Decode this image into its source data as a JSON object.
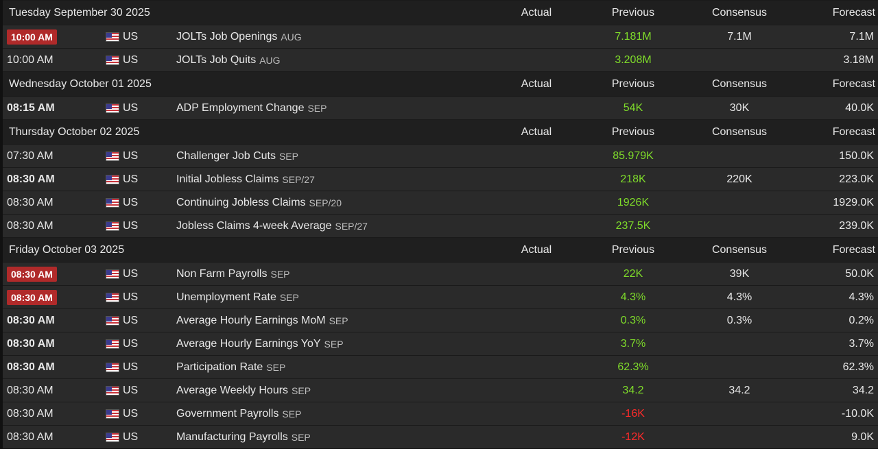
{
  "columns": {
    "actual": "Actual",
    "previous": "Previous",
    "consensus": "Consensus",
    "forecast": "Forecast"
  },
  "days": [
    {
      "date": "Tuesday September 30 2025",
      "events": [
        {
          "time": "10:00 AM",
          "style": "badge",
          "country": "US",
          "name": "JOLTs Job Openings",
          "period": "AUG",
          "actual": "",
          "previous": "7.181M",
          "previous_color": "green",
          "consensus": "7.1M",
          "forecast": "7.1M"
        },
        {
          "time": "10:00 AM",
          "style": "normal",
          "country": "US",
          "name": "JOLTs Job Quits",
          "period": "AUG",
          "actual": "",
          "previous": "3.208M",
          "previous_color": "green",
          "consensus": "",
          "forecast": "3.18M"
        }
      ]
    },
    {
      "date": "Wednesday October 01 2025",
      "events": [
        {
          "time": "08:15 AM",
          "style": "bold",
          "country": "US",
          "name": "ADP Employment Change",
          "period": "SEP",
          "actual": "",
          "previous": "54K",
          "previous_color": "green",
          "consensus": "30K",
          "forecast": "40.0K"
        }
      ]
    },
    {
      "date": "Thursday October 02 2025",
      "events": [
        {
          "time": "07:30 AM",
          "style": "normal",
          "country": "US",
          "name": "Challenger Job Cuts",
          "period": "SEP",
          "actual": "",
          "previous": "85.979K",
          "previous_color": "green",
          "consensus": "",
          "forecast": "150.0K"
        },
        {
          "time": "08:30 AM",
          "style": "bold",
          "country": "US",
          "name": "Initial Jobless Claims",
          "period": "SEP/27",
          "actual": "",
          "previous": "218K",
          "previous_color": "green",
          "consensus": "220K",
          "forecast": "223.0K"
        },
        {
          "time": "08:30 AM",
          "style": "normal",
          "country": "US",
          "name": "Continuing Jobless Claims",
          "period": "SEP/20",
          "actual": "",
          "previous": "1926K",
          "previous_color": "green",
          "consensus": "",
          "forecast": "1929.0K"
        },
        {
          "time": "08:30 AM",
          "style": "normal",
          "country": "US",
          "name": "Jobless Claims 4-week Average",
          "period": "SEP/27",
          "actual": "",
          "previous": "237.5K",
          "previous_color": "green",
          "consensus": "",
          "forecast": "239.0K"
        }
      ]
    },
    {
      "date": "Friday October 03 2025",
      "events": [
        {
          "time": "08:30 AM",
          "style": "badge",
          "country": "US",
          "name": "Non Farm Payrolls",
          "period": "SEP",
          "actual": "",
          "previous": "22K",
          "previous_color": "green",
          "consensus": "39K",
          "forecast": "50.0K"
        },
        {
          "time": "08:30 AM",
          "style": "badge",
          "country": "US",
          "name": "Unemployment Rate",
          "period": "SEP",
          "actual": "",
          "previous": "4.3%",
          "previous_color": "green",
          "consensus": "4.3%",
          "forecast": "4.3%"
        },
        {
          "time": "08:30 AM",
          "style": "bold",
          "country": "US",
          "name": "Average Hourly Earnings MoM",
          "period": "SEP",
          "actual": "",
          "previous": "0.3%",
          "previous_color": "green",
          "consensus": "0.3%",
          "forecast": "0.2%"
        },
        {
          "time": "08:30 AM",
          "style": "bold",
          "country": "US",
          "name": "Average Hourly Earnings YoY",
          "period": "SEP",
          "actual": "",
          "previous": "3.7%",
          "previous_color": "green",
          "consensus": "",
          "forecast": "3.7%"
        },
        {
          "time": "08:30 AM",
          "style": "bold",
          "country": "US",
          "name": "Participation Rate",
          "period": "SEP",
          "actual": "",
          "previous": "62.3%",
          "previous_color": "green",
          "consensus": "",
          "forecast": "62.3%"
        },
        {
          "time": "08:30 AM",
          "style": "normal",
          "country": "US",
          "name": "Average Weekly Hours",
          "period": "SEP",
          "actual": "",
          "previous": "34.2",
          "previous_color": "green",
          "consensus": "34.2",
          "forecast": "34.2"
        },
        {
          "time": "08:30 AM",
          "style": "normal",
          "country": "US",
          "name": "Government Payrolls",
          "period": "SEP",
          "actual": "",
          "previous": "-16K",
          "previous_color": "red",
          "consensus": "",
          "forecast": "-10.0K"
        },
        {
          "time": "08:30 AM",
          "style": "normal",
          "country": "US",
          "name": "Manufacturing Payrolls",
          "period": "SEP",
          "actual": "",
          "previous": "-12K",
          "previous_color": "red",
          "consensus": "",
          "forecast": "9.0K"
        }
      ]
    }
  ],
  "colors": {
    "green": "#7fdc2a",
    "red": "#ff2a2a",
    "badge": "#b02a2a"
  },
  "icons": {
    "flag": "us-flag-icon"
  }
}
